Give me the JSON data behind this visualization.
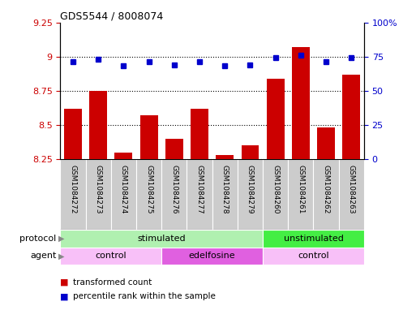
{
  "title": "GDS5544 / 8008074",
  "samples": [
    "GSM1084272",
    "GSM1084273",
    "GSM1084274",
    "GSM1084275",
    "GSM1084276",
    "GSM1084277",
    "GSM1084278",
    "GSM1084279",
    "GSM1084260",
    "GSM1084261",
    "GSM1084262",
    "GSM1084263"
  ],
  "red_values": [
    8.62,
    8.75,
    8.3,
    8.57,
    8.4,
    8.62,
    8.28,
    8.35,
    8.84,
    9.07,
    8.48,
    8.87
  ],
  "blue_values": [
    71,
    73,
    68,
    71,
    69,
    71,
    68,
    69,
    74,
    76,
    71,
    74
  ],
  "ylim_left": [
    8.25,
    9.25
  ],
  "ylim_right": [
    0,
    100
  ],
  "yticks_left": [
    8.25,
    8.5,
    8.75,
    9.0,
    9.25
  ],
  "ytick_labels_left": [
    "8.25",
    "8.5",
    "8.75",
    "9",
    "9.25"
  ],
  "yticks_right": [
    0,
    25,
    50,
    75,
    100
  ],
  "ytick_labels_right": [
    "0",
    "25",
    "50",
    "75",
    "100%"
  ],
  "protocol_groups": [
    {
      "text": "stimulated",
      "start": 0,
      "end": 7,
      "color": "#b0f0b0"
    },
    {
      "text": "unstimulated",
      "start": 8,
      "end": 11,
      "color": "#44ee44"
    }
  ],
  "agent_groups": [
    {
      "text": "control",
      "start": 0,
      "end": 3,
      "color": "#f8c0f8"
    },
    {
      "text": "edelfosine",
      "start": 4,
      "end": 7,
      "color": "#e060e0"
    },
    {
      "text": "control",
      "start": 8,
      "end": 11,
      "color": "#f8c0f8"
    }
  ],
  "bar_color": "#CC0000",
  "dot_color": "#0000CC",
  "bg_color": "#ffffff",
  "label_bg_color": "#cccccc",
  "left_tick_color": "#CC0000",
  "right_tick_color": "#0000CC",
  "protocol_row_label": "protocol",
  "agent_row_label": "agent",
  "arrow_color": "#888888",
  "legend_items": [
    "transformed count",
    "percentile rank within the sample"
  ],
  "bar_width": 0.7,
  "ybase": 8.25
}
